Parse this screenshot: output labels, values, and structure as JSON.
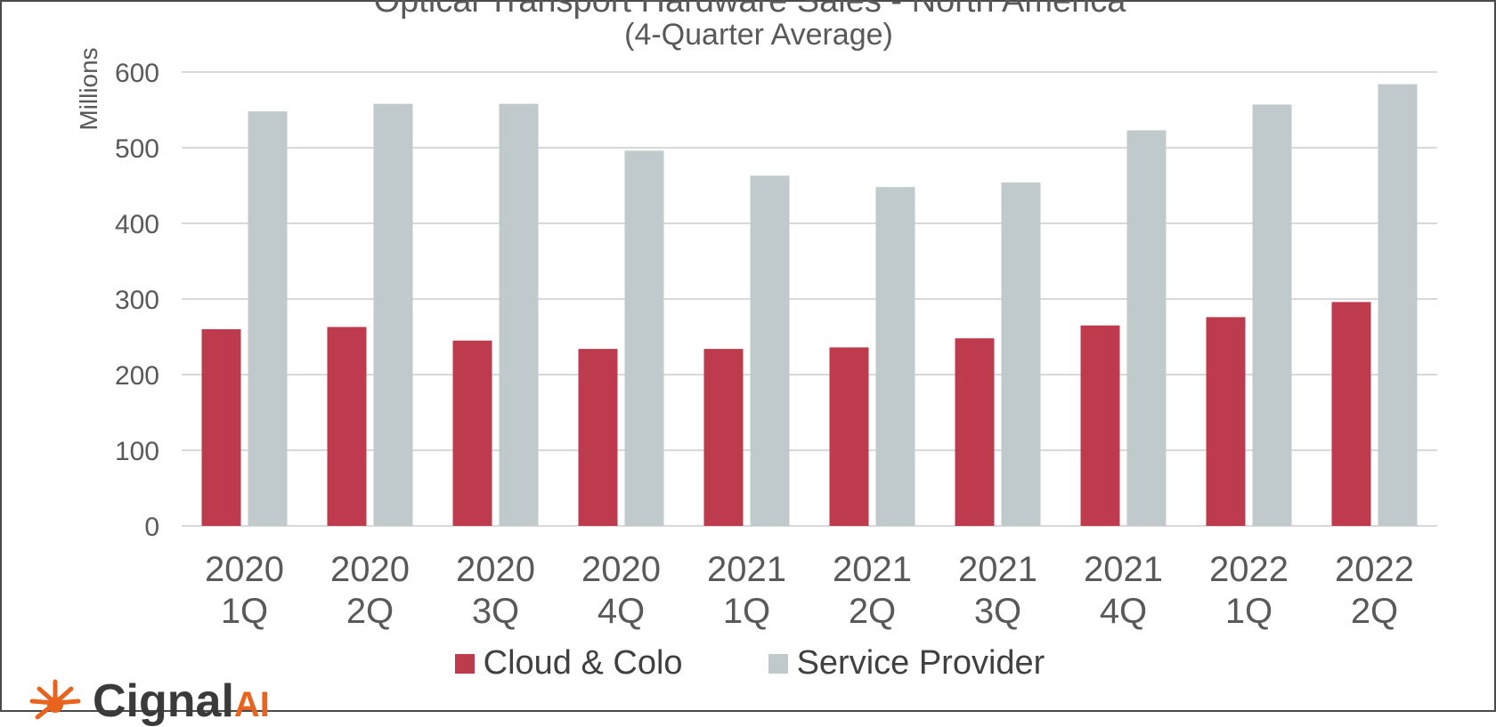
{
  "chart_data": {
    "type": "bar",
    "title": "Optical Transport Hardware Sales - North America",
    "subtitle": "(4-Quarter Average)",
    "ylabel": "Millions",
    "xlabel": "",
    "ylim": [
      0,
      600
    ],
    "yticks": [
      "0",
      "100",
      "200",
      "300",
      "400",
      "500",
      "600"
    ],
    "categories": [
      [
        "2020",
        "1Q"
      ],
      [
        "2020",
        "2Q"
      ],
      [
        "2020",
        "3Q"
      ],
      [
        "2020",
        "4Q"
      ],
      [
        "2021",
        "1Q"
      ],
      [
        "2021",
        "2Q"
      ],
      [
        "2021",
        "3Q"
      ],
      [
        "2021",
        "4Q"
      ],
      [
        "2022",
        "1Q"
      ],
      [
        "2022",
        "2Q"
      ]
    ],
    "series": [
      {
        "name": "Cloud & Colo",
        "color": "#be3a4d",
        "values": [
          260,
          263,
          245,
          234,
          234,
          236,
          248,
          265,
          276,
          296
        ]
      },
      {
        "name": "Service Provider",
        "color": "#c0c9cc",
        "values": [
          548,
          558,
          558,
          496,
          463,
          448,
          454,
          523,
          557,
          584
        ]
      }
    ],
    "grid": true,
    "legend_position": "bottom",
    "gridline_color": "#d9d9d9"
  },
  "logo": {
    "text": "Cignal",
    "suffix": "AI",
    "icon": "sunburst-icon",
    "color": "#e8641e"
  }
}
